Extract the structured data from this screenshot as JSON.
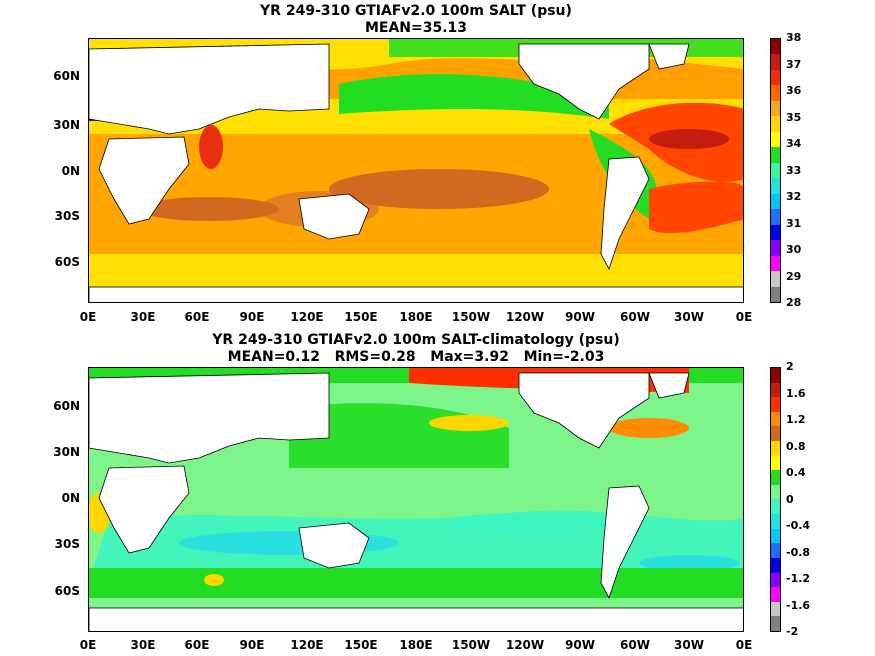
{
  "panels": [
    {
      "title": "YR 249-310 GTIAFv2.0 100m SALT (psu)",
      "subtitle": "MEAN=35.13",
      "base_color": "#ffe000",
      "colorbar": {
        "labels": [
          "38",
          "37",
          "36",
          "35",
          "34",
          "33",
          "32",
          "31",
          "30",
          "29",
          "28"
        ],
        "colors": [
          "#8b0000",
          "#c41e0e",
          "#e8300f",
          "#ff6a00",
          "#f5a623",
          "#ffd700",
          "#ffff00",
          "#22dd22",
          "#3df5a0",
          "#28e0e0",
          "#00c8ff",
          "#1e6fff",
          "#0000e0",
          "#8a00ff",
          "#ff00ff",
          "#c8c8c8",
          "#808080"
        ]
      }
    },
    {
      "title": "YR 249-310 GTIAFv2.0 100m SALT-climatology (psu)",
      "subtitle": "MEAN=0.12   RMS=0.28   Max=3.92   Min=-2.03",
      "base_color": "#7ef58a",
      "colorbar": {
        "labels": [
          "2",
          "1.6",
          "1.2",
          "0.8",
          "0.4",
          "0",
          "-0.4",
          "-0.8",
          "-1.2",
          "-1.6",
          "-2"
        ],
        "colors": [
          "#8b0000",
          "#c41e0e",
          "#ff3000",
          "#ff8c00",
          "#d2691e",
          "#ffd700",
          "#ffff00",
          "#22dd22",
          "#7ef58a",
          "#3df5c0",
          "#28e0e0",
          "#00c8ff",
          "#1e6fff",
          "#0000e0",
          "#8a00ff",
          "#ff00ff",
          "#c8c8c8",
          "#808080"
        ]
      }
    }
  ],
  "latitude_labels": [
    "60N",
    "30N",
    "0N",
    "30S",
    "60S"
  ],
  "longitude_labels": [
    "0E",
    "30E",
    "60E",
    "90E",
    "120E",
    "150E",
    "180E",
    "150W",
    "120W",
    "90W",
    "60W",
    "30W",
    "0E"
  ]
}
